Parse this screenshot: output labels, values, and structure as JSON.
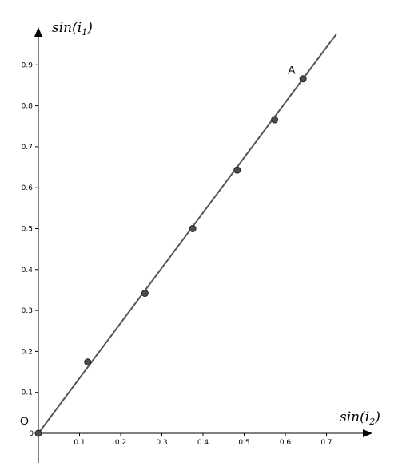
{
  "chart_data": {
    "type": "scatter",
    "xlabel": "sin(i₂)",
    "ylabel": "sin(i₁)",
    "xlabel_base": "sin(i",
    "xlabel_sub": "2",
    "xlabel_end": ")",
    "ylabel_base": "sin(i",
    "ylabel_sub": "1",
    "ylabel_end": ")",
    "x_ticks": [
      "0.1",
      "0.2",
      "0.3",
      "0.4",
      "0.5",
      "0.6",
      "0.7"
    ],
    "y_ticks": [
      "0.1",
      "0.2",
      "0.3",
      "0.4",
      "0.5",
      "0.6",
      "0.7",
      "0.8",
      "0.9"
    ],
    "zero_label": "0",
    "origin_label": "O",
    "point_label": "A",
    "xlim": [
      0,
      0.8
    ],
    "ylim": [
      0,
      0.97
    ],
    "grid": false,
    "points": [
      {
        "x": 0,
        "y": 0
      },
      {
        "x": 0.12,
        "y": 0.174
      },
      {
        "x": 0.259,
        "y": 0.342
      },
      {
        "x": 0.375,
        "y": 0.5
      },
      {
        "x": 0.483,
        "y": 0.643
      },
      {
        "x": 0.574,
        "y": 0.766
      },
      {
        "x": 0.643,
        "y": 0.866
      }
    ],
    "fit_line": {
      "slope": 1.347,
      "intercept": 0
    },
    "line_color": "#555555",
    "point_color": "#4d4d4d"
  }
}
